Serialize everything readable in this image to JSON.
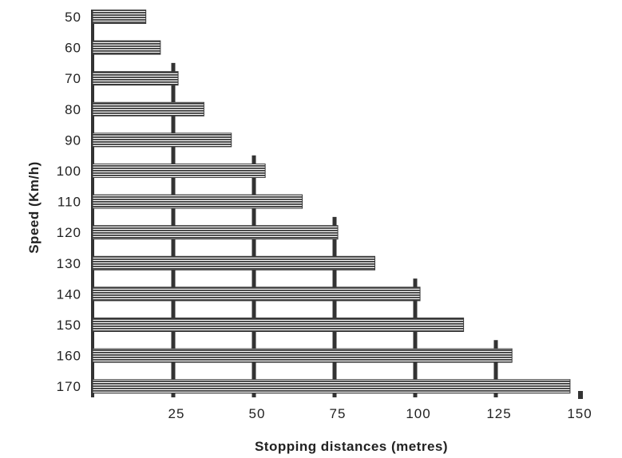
{
  "chart_data": {
    "type": "bar",
    "orientation": "horizontal",
    "title": "",
    "xlabel": "Stopping distances (metres)",
    "ylabel": "Speed (Km/h)",
    "categories": [
      "50",
      "60",
      "70",
      "80",
      "90",
      "100",
      "110",
      "120",
      "130",
      "140",
      "150",
      "160",
      "170"
    ],
    "values": [
      16.5,
      21,
      26.5,
      34.5,
      43,
      53.5,
      65,
      76,
      87.5,
      101.5,
      115,
      130,
      148
    ],
    "xticks": [
      "25",
      "50",
      "75",
      "100",
      "125",
      "150"
    ],
    "xlim": [
      0,
      150
    ],
    "grid": true,
    "legend": "none",
    "colors": {
      "bar_stripe": "#3a3a3a",
      "bar_gap": "#ffffff",
      "axis": "#333333",
      "text": "#222222"
    }
  }
}
